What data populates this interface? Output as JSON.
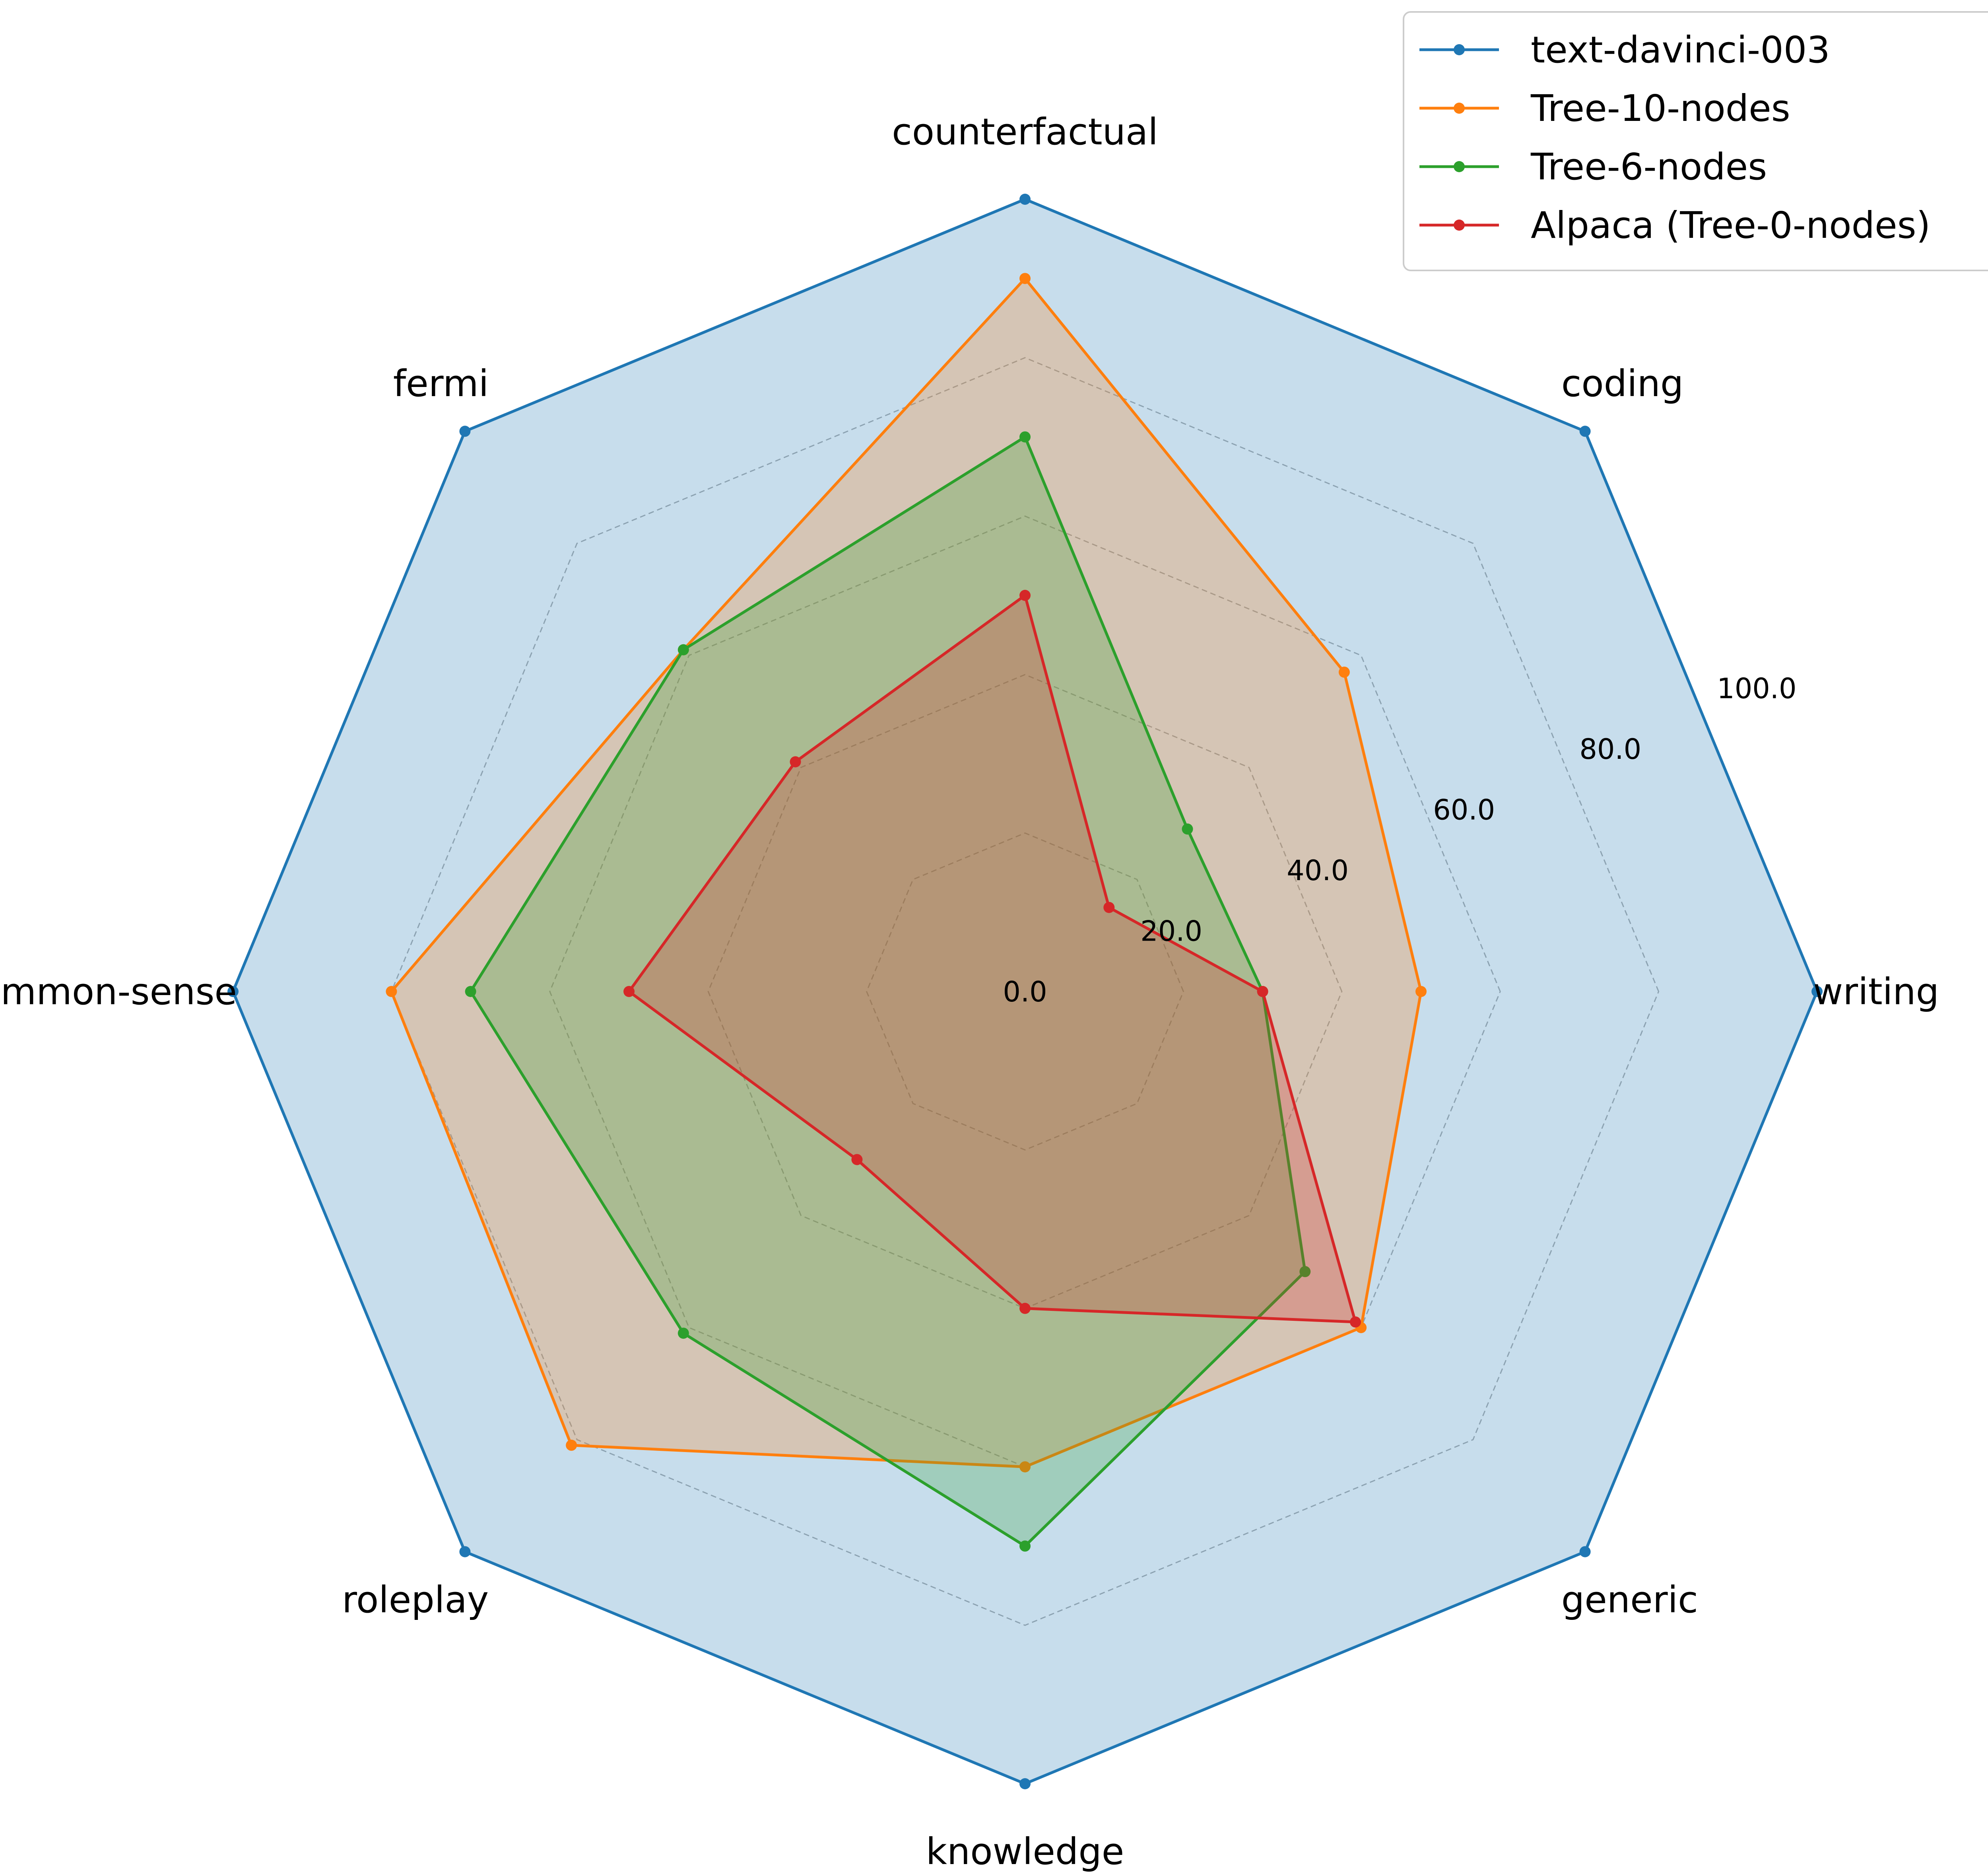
{
  "chart_data": {
    "type": "radar",
    "title": "",
    "categories": [
      "writing",
      "coding",
      "counterfactual",
      "fermi",
      "common-sense",
      "roleplay",
      "knowledge",
      "generic"
    ],
    "rlim": [
      0,
      100
    ],
    "rticks": [
      "0.0",
      "20.0",
      "40.0",
      "60.0",
      "80.0",
      "100.0"
    ],
    "rtick_values": [
      0,
      20,
      40,
      60,
      80,
      100
    ],
    "grid": true,
    "legend_position": "top-right",
    "series": [
      {
        "name": "text-davinci-003",
        "color": "#1f77b4",
        "values": [
          100,
          100,
          100,
          100,
          100,
          100,
          100,
          100
        ]
      },
      {
        "name": "Tree-10-nodes",
        "color": "#ff7f0e",
        "values": [
          50,
          57,
          90,
          61,
          80,
          81,
          60,
          60
        ]
      },
      {
        "name": "Tree-6-nodes",
        "color": "#2ca02c",
        "values": [
          30,
          29,
          70,
          61,
          70,
          61,
          70,
          50
        ]
      },
      {
        "name": "Alpaca (Tree-0-nodes)",
        "color": "#d62728",
        "values": [
          30,
          15,
          50,
          41,
          50,
          30,
          40,
          59
        ]
      }
    ]
  }
}
